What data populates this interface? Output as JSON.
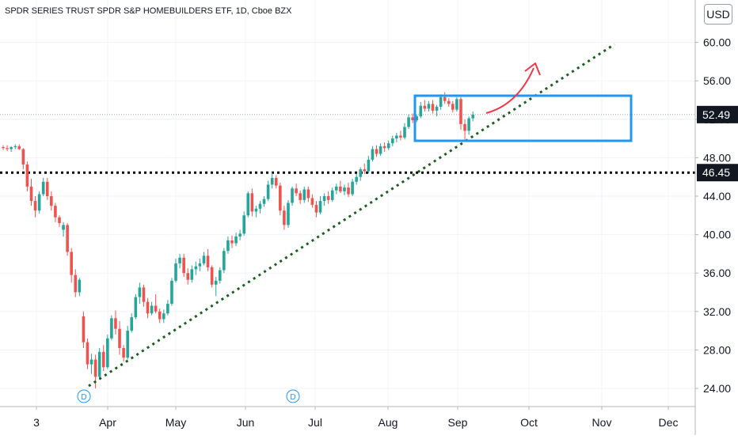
{
  "header": {
    "title": "SPDR SERIES TRUST SPDR S&P HOMEBUILDERS ETF, 1D, Cboe BZX"
  },
  "price_scale": {
    "currency": "USD",
    "ticks": [
      "24.00",
      "28.00",
      "32.00",
      "36.00",
      "40.00",
      "44.00",
      "48.00",
      "52.00",
      "56.00",
      "60.00"
    ],
    "current_price_label": "52.49",
    "level_label": "46.45"
  },
  "time_scale": {
    "ticks": [
      "3",
      "Apr",
      "May",
      "Jun",
      "Jul",
      "Aug",
      "Sep",
      "Oct",
      "Nov",
      "Dec"
    ]
  },
  "dividend_markers": [
    {
      "label": "D",
      "date": "Mar 23"
    },
    {
      "label": "D",
      "date": "Jun 22"
    }
  ],
  "colors": {
    "up": "#26a69a",
    "down": "#ef5350",
    "trendline": "#1b5e20",
    "level": "#000000",
    "box": "#2196f3",
    "arrow": "#f23645",
    "price_tag": "#131722"
  },
  "chart_data": {
    "type": "candlestick",
    "title": "SPDR SERIES TRUST SPDR S&P HOMEBUILDERS ETF, 1D, Cboe BZX",
    "ylim": [
      21.5,
      64.5
    ],
    "x_ticks": [
      "3",
      "Apr",
      "May",
      "Jun",
      "Jul",
      "Aug",
      "Sep",
      "Oct",
      "Nov",
      "Dec"
    ],
    "horizontal_level": 46.45,
    "last_price": 52.49,
    "ohlc": [
      [
        49.1,
        49.3,
        48.8,
        49.0
      ],
      [
        49.0,
        49.3,
        48.7,
        48.9
      ],
      [
        48.9,
        49.2,
        48.6,
        49.1
      ],
      [
        49.1,
        49.4,
        48.9,
        49.2
      ],
      [
        49.2,
        49.4,
        48.8,
        48.9
      ],
      [
        48.9,
        49.0,
        46.8,
        47.3
      ],
      [
        47.3,
        47.6,
        44.5,
        45.0
      ],
      [
        45.0,
        45.8,
        43.0,
        43.5
      ],
      [
        43.5,
        44.0,
        41.8,
        42.5
      ],
      [
        42.5,
        44.5,
        42.2,
        44.2
      ],
      [
        44.2,
        45.9,
        44.0,
        45.5
      ],
      [
        45.5,
        45.9,
        43.6,
        44.0
      ],
      [
        44.0,
        44.5,
        42.5,
        43.0
      ],
      [
        43.0,
        43.3,
        41.3,
        41.8
      ],
      [
        41.8,
        42.0,
        40.8,
        41.2
      ],
      [
        40.5,
        41.3,
        39.8,
        41.0
      ],
      [
        41.0,
        41.2,
        37.8,
        38.2
      ],
      [
        38.2,
        38.6,
        35.0,
        35.8
      ],
      [
        35.8,
        36.4,
        33.5,
        34.0
      ],
      [
        34.0,
        35.5,
        33.6,
        35.3
      ],
      [
        31.5,
        32.0,
        28.2,
        28.8
      ],
      [
        28.8,
        29.2,
        26.0,
        26.5
      ],
      [
        26.5,
        27.6,
        25.5,
        27.0
      ],
      [
        27.0,
        27.5,
        24.0,
        25.2
      ],
      [
        25.2,
        28.2,
        24.9,
        27.8
      ],
      [
        27.8,
        28.5,
        25.8,
        26.2
      ],
      [
        26.2,
        29.6,
        26.0,
        29.2
      ],
      [
        29.2,
        31.6,
        29.0,
        31.3
      ],
      [
        31.3,
        32.1,
        29.6,
        30.2
      ],
      [
        30.2,
        31.0,
        27.5,
        28.2
      ],
      [
        28.2,
        28.5,
        26.8,
        27.2
      ],
      [
        27.2,
        30.5,
        27.0,
        30.0
      ],
      [
        30.0,
        31.8,
        29.8,
        31.4
      ],
      [
        31.4,
        33.8,
        31.2,
        33.5
      ],
      [
        33.5,
        35.0,
        32.8,
        34.5
      ],
      [
        34.5,
        34.8,
        32.5,
        33.0
      ],
      [
        33.0,
        33.4,
        31.3,
        31.8
      ],
      [
        31.8,
        33.0,
        31.6,
        32.6
      ],
      [
        32.6,
        33.8,
        31.8,
        32.0
      ],
      [
        32.0,
        32.3,
        30.8,
        31.2
      ],
      [
        31.2,
        32.2,
        30.8,
        31.8
      ],
      [
        31.8,
        33.2,
        31.6,
        32.8
      ],
      [
        32.8,
        35.5,
        32.6,
        35.2
      ],
      [
        35.2,
        37.5,
        35.0,
        37.0
      ],
      [
        37.0,
        38.0,
        36.5,
        37.6
      ],
      [
        37.6,
        38.0,
        35.6,
        36.0
      ],
      [
        36.0,
        36.5,
        34.8,
        35.3
      ],
      [
        35.3,
        36.8,
        35.0,
        36.4
      ],
      [
        36.4,
        37.2,
        35.8,
        36.7
      ],
      [
        36.7,
        37.5,
        36.2,
        37.0
      ],
      [
        37.0,
        38.2,
        36.8,
        37.8
      ],
      [
        37.8,
        38.5,
        36.2,
        36.6
      ],
      [
        36.6,
        36.8,
        34.5,
        34.8
      ],
      [
        34.8,
        35.6,
        33.6,
        35.2
      ],
      [
        35.2,
        36.6,
        34.9,
        36.3
      ],
      [
        36.3,
        38.6,
        36.0,
        38.3
      ],
      [
        38.3,
        39.8,
        38.0,
        39.4
      ],
      [
        39.4,
        39.9,
        38.6,
        39.1
      ],
      [
        39.1,
        40.2,
        38.8,
        39.8
      ],
      [
        39.8,
        40.5,
        39.4,
        40.1
      ],
      [
        40.1,
        42.4,
        39.9,
        42.0
      ],
      [
        42.0,
        44.5,
        41.8,
        44.3
      ],
      [
        44.3,
        44.8,
        41.9,
        42.4
      ],
      [
        42.4,
        43.0,
        41.8,
        42.7
      ],
      [
        42.7,
        43.5,
        42.2,
        43.2
      ],
      [
        43.2,
        44.0,
        42.9,
        43.7
      ],
      [
        43.7,
        45.6,
        43.5,
        45.2
      ],
      [
        45.2,
        46.5,
        44.8,
        45.9
      ],
      [
        45.9,
        46.2,
        44.8,
        45.1
      ],
      [
        45.1,
        45.4,
        42.0,
        42.5
      ],
      [
        42.5,
        43.0,
        40.5,
        41.0
      ],
      [
        41.0,
        43.6,
        40.7,
        43.3
      ],
      [
        43.3,
        45.0,
        43.0,
        44.8
      ],
      [
        44.8,
        45.3,
        44.0,
        44.3
      ],
      [
        44.3,
        44.6,
        43.2,
        43.6
      ],
      [
        43.6,
        45.0,
        43.3,
        44.7
      ],
      [
        44.7,
        45.0,
        43.4,
        43.8
      ],
      [
        43.8,
        44.2,
        42.8,
        43.1
      ],
      [
        43.1,
        43.5,
        41.8,
        42.3
      ],
      [
        42.3,
        44.0,
        42.1,
        43.5
      ],
      [
        43.5,
        44.3,
        43.0,
        44.0
      ],
      [
        44.0,
        44.5,
        43.2,
        43.6
      ],
      [
        43.6,
        44.9,
        43.4,
        44.6
      ],
      [
        44.6,
        45.3,
        44.2,
        45.0
      ],
      [
        45.0,
        45.6,
        44.3,
        44.5
      ],
      [
        44.5,
        45.2,
        44.1,
        44.9
      ],
      [
        44.9,
        45.4,
        43.9,
        44.2
      ],
      [
        44.2,
        45.8,
        44.0,
        45.5
      ],
      [
        45.5,
        46.3,
        45.2,
        46.0
      ],
      [
        46.0,
        47.0,
        45.6,
        46.8
      ],
      [
        46.8,
        47.4,
        46.3,
        46.6
      ],
      [
        46.6,
        48.2,
        46.4,
        47.8
      ],
      [
        47.8,
        49.2,
        47.6,
        48.9
      ],
      [
        48.9,
        49.3,
        48.1,
        48.4
      ],
      [
        48.4,
        49.5,
        48.2,
        49.2
      ],
      [
        49.2,
        49.6,
        48.6,
        49.0
      ],
      [
        49.0,
        49.8,
        48.8,
        49.5
      ],
      [
        49.5,
        50.3,
        49.2,
        50.0
      ],
      [
        50.0,
        50.6,
        49.6,
        50.3
      ],
      [
        50.3,
        50.8,
        49.8,
        50.1
      ],
      [
        50.1,
        51.6,
        49.9,
        51.2
      ],
      [
        51.2,
        52.5,
        51.0,
        52.2
      ],
      [
        52.2,
        52.6,
        51.6,
        51.9
      ],
      [
        51.9,
        52.5,
        51.7,
        52.3
      ],
      [
        52.3,
        53.8,
        52.1,
        53.4
      ],
      [
        53.4,
        54.0,
        52.8,
        53.1
      ],
      [
        53.1,
        53.9,
        52.8,
        53.6
      ],
      [
        53.6,
        54.0,
        52.6,
        52.9
      ],
      [
        52.9,
        53.5,
        52.3,
        53.3
      ],
      [
        53.3,
        54.6,
        53.0,
        54.3
      ],
      [
        54.3,
        54.8,
        53.6,
        53.9
      ],
      [
        53.9,
        54.2,
        53.3,
        53.6
      ],
      [
        53.6,
        53.9,
        52.7,
        53.0
      ],
      [
        53.0,
        54.3,
        52.8,
        54.1
      ],
      [
        54.1,
        54.3,
        50.9,
        51.5
      ],
      [
        51.5,
        52.0,
        49.9,
        50.8
      ],
      [
        50.8,
        52.3,
        50.4,
        52.1
      ],
      [
        52.1,
        52.8,
        51.8,
        52.49
      ]
    ]
  }
}
